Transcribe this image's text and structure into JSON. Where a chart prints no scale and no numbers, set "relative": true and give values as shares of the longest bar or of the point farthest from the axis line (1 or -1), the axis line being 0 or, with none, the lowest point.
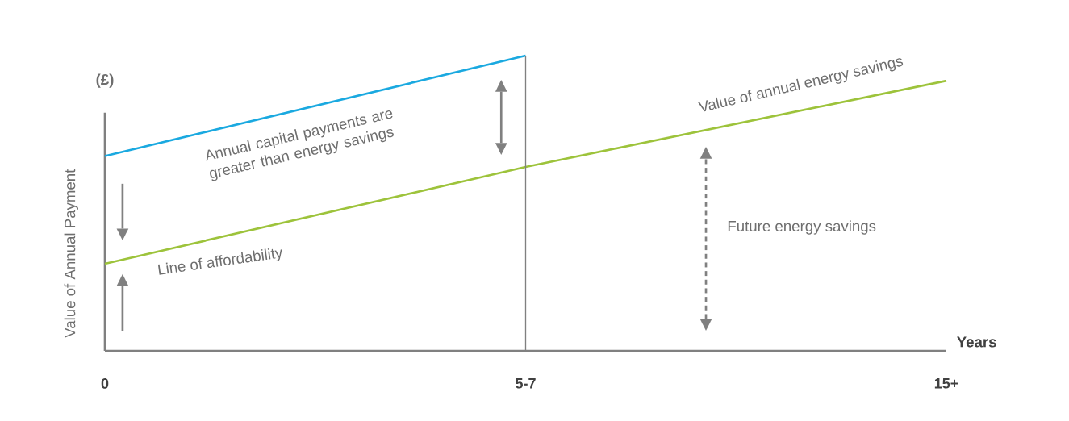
{
  "chart_data": {
    "type": "line",
    "relative": true,
    "categories": [
      "0",
      "5-7",
      "15+"
    ],
    "series": [
      {
        "color": "#1aa9e0",
        "values": [
          0.66,
          1.0,
          null
        ]
      },
      {
        "color": "#9dc33b",
        "values": [
          0.295,
          0.623,
          0.915
        ]
      }
    ],
    "xlabel": "Years",
    "ylabel": "Value of Annual Payment",
    "ref_lines": [
      {
        "axis": "x",
        "value": "5-7",
        "color": "#808080"
      }
    ],
    "annotations": [
      "Annual capital payments are greater than energy savings",
      "Line of affordability",
      "Value of annual energy savings",
      "Future energy savings",
      "(£)"
    ],
    "marker": "none",
    "line_style": "solid"
  }
}
